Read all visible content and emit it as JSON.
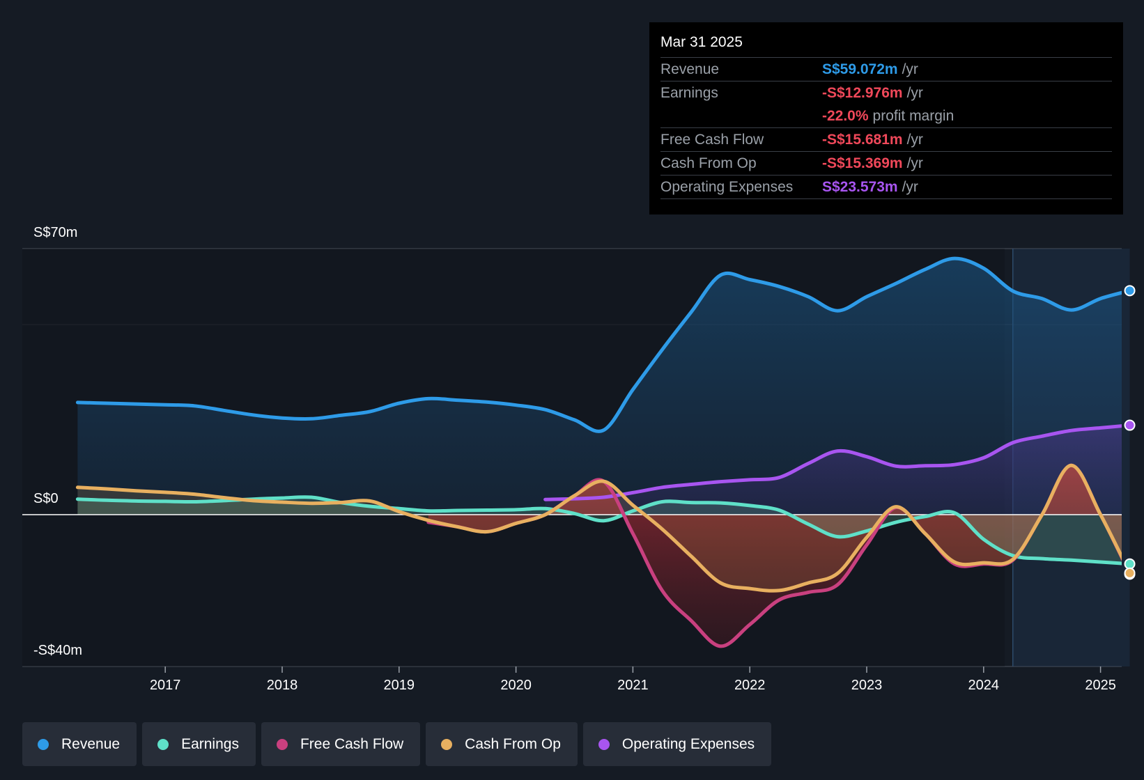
{
  "tooltip": {
    "date": "Mar 31 2025",
    "rows": [
      {
        "label": "Revenue",
        "value": "S$59.072m",
        "unit": "/yr",
        "color": "#2e9be8"
      },
      {
        "label": "Earnings",
        "value": "-S$12.976m",
        "unit": "/yr",
        "color": "#f0485a"
      },
      {
        "label": "",
        "value": "-22.0%",
        "unit": "profit margin",
        "color": "#f0485a"
      },
      {
        "label": "Free Cash Flow",
        "value": "-S$15.681m",
        "unit": "/yr",
        "color": "#f0485a"
      },
      {
        "label": "Cash From Op",
        "value": "-S$15.369m",
        "unit": "/yr",
        "color": "#f0485a"
      },
      {
        "label": "Operating Expenses",
        "value": "S$23.573m",
        "unit": "/yr",
        "color": "#a855f0"
      }
    ]
  },
  "chart_data": {
    "type": "line",
    "y_labels": {
      "top": "S$70m",
      "zero": "S$0",
      "bottom": "-S$40m"
    },
    "ylim": [
      -40,
      70
    ],
    "xlim": [
      2016.0,
      2025.25
    ],
    "x_ticks": [
      "2017",
      "2018",
      "2019",
      "2020",
      "2021",
      "2022",
      "2023",
      "2024",
      "2025"
    ],
    "x_tick_values": [
      2017,
      2018,
      2019,
      2020,
      2021,
      2022,
      2023,
      2024,
      2025
    ],
    "grid": true,
    "forecast_start": 2024.25,
    "series": [
      {
        "name": "Revenue",
        "color": "#2e9be8",
        "fill": true,
        "x": [
          2016.25,
          2016.5,
          2016.75,
          2017.0,
          2017.25,
          2017.5,
          2017.75,
          2018.0,
          2018.25,
          2018.5,
          2018.75,
          2019.0,
          2019.25,
          2019.5,
          2019.75,
          2020.0,
          2020.25,
          2020.5,
          2020.75,
          2021.0,
          2021.25,
          2021.5,
          2021.75,
          2022.0,
          2022.25,
          2022.5,
          2022.75,
          2023.0,
          2023.25,
          2023.5,
          2023.75,
          2024.0,
          2024.25,
          2024.5,
          2024.75,
          2025.0,
          2025.25
        ],
        "values": [
          29.6,
          29.4,
          29.2,
          29.0,
          28.7,
          27.5,
          26.3,
          25.5,
          25.3,
          26.2,
          27.2,
          29.4,
          30.6,
          30.2,
          29.7,
          28.9,
          27.7,
          25.0,
          22.3,
          33.0,
          43.5,
          53.5,
          63.2,
          62.0,
          60.2,
          57.5,
          53.8,
          57.5,
          61.0,
          64.7,
          67.6,
          65.0,
          59.0,
          57.0,
          54.0,
          57.0,
          59.1
        ]
      },
      {
        "name": "Earnings",
        "color": "#5fe0c8",
        "fill": true,
        "x": [
          2016.25,
          2016.5,
          2016.75,
          2017.0,
          2017.25,
          2017.5,
          2017.75,
          2018.0,
          2018.25,
          2018.5,
          2018.75,
          2019.0,
          2019.25,
          2019.5,
          2019.75,
          2020.0,
          2020.25,
          2020.5,
          2020.75,
          2021.0,
          2021.25,
          2021.5,
          2021.75,
          2022.0,
          2022.25,
          2022.5,
          2022.75,
          2023.0,
          2023.25,
          2023.5,
          2023.75,
          2024.0,
          2024.25,
          2024.5,
          2024.75,
          2025.0,
          2025.25
        ],
        "values": [
          4.1,
          3.8,
          3.6,
          3.5,
          3.4,
          3.7,
          4.1,
          4.4,
          4.6,
          3.2,
          2.2,
          1.6,
          1.0,
          1.1,
          1.2,
          1.3,
          1.6,
          0.3,
          -1.6,
          1.0,
          3.4,
          3.2,
          3.1,
          2.4,
          1.2,
          -2.5,
          -5.8,
          -4.3,
          -2.0,
          -0.5,
          0.5,
          -6.5,
          -10.8,
          -11.6,
          -12.0,
          -12.5,
          -13.0
        ]
      },
      {
        "name": "Free Cash Flow",
        "color": "#c9407f",
        "fill": true,
        "x": [
          2019.25,
          2019.5,
          2019.75,
          2020.0,
          2020.25,
          2020.5,
          2020.75,
          2021.0,
          2021.25,
          2021.5,
          2021.75,
          2022.0,
          2022.25,
          2022.5,
          2022.75,
          2023.0,
          2023.25,
          2023.5,
          2023.75,
          2024.0,
          2024.25,
          2024.5,
          2024.75,
          2025.0,
          2025.25
        ],
        "values": [
          -2.0,
          -3.2,
          -4.5,
          -2.3,
          0.0,
          5.0,
          8.8,
          -5.0,
          -20.0,
          -28.0,
          -34.7,
          -29.0,
          -22.5,
          -20.5,
          -18.5,
          -8.0,
          1.9,
          -5.0,
          -13.0,
          -13.0,
          -12.0,
          0.0,
          13.0,
          0.0,
          -15.7
        ]
      },
      {
        "name": "Cash From Op",
        "color": "#e8b060",
        "fill": true,
        "x": [
          2016.25,
          2016.5,
          2016.75,
          2017.0,
          2017.25,
          2017.5,
          2017.75,
          2018.0,
          2018.25,
          2018.5,
          2018.75,
          2019.0,
          2019.25,
          2019.5,
          2019.75,
          2020.0,
          2020.25,
          2020.5,
          2020.75,
          2021.0,
          2021.25,
          2021.5,
          2021.75,
          2022.0,
          2022.25,
          2022.5,
          2022.75,
          2023.0,
          2023.25,
          2023.5,
          2023.75,
          2024.0,
          2024.25,
          2024.5,
          2024.75,
          2025.0,
          2025.25
        ],
        "values": [
          7.2,
          6.8,
          6.3,
          5.9,
          5.4,
          4.5,
          3.7,
          3.3,
          3.0,
          3.2,
          3.6,
          0.8,
          -1.5,
          -3.2,
          -4.5,
          -2.3,
          0.0,
          5.0,
          8.8,
          2.5,
          -3.8,
          -11.0,
          -18.0,
          -19.5,
          -20.0,
          -18.0,
          -15.5,
          -6.0,
          2.1,
          -5.0,
          -12.5,
          -12.7,
          -11.8,
          0.0,
          13.0,
          0.0,
          -15.4
        ]
      },
      {
        "name": "Operating Expenses",
        "color": "#a855f0",
        "fill": true,
        "x": [
          2020.25,
          2020.5,
          2020.75,
          2021.0,
          2021.25,
          2021.5,
          2021.75,
          2022.0,
          2022.25,
          2022.5,
          2022.75,
          2023.0,
          2023.25,
          2023.5,
          2023.75,
          2024.0,
          2024.25,
          2024.5,
          2024.75,
          2025.0,
          2025.25
        ],
        "values": [
          4.0,
          4.2,
          4.6,
          5.8,
          7.2,
          8.0,
          8.7,
          9.2,
          9.8,
          13.5,
          16.8,
          15.3,
          12.8,
          12.9,
          13.2,
          15.0,
          19.0,
          20.7,
          22.2,
          22.9,
          23.6
        ]
      }
    ]
  },
  "legend": [
    {
      "label": "Revenue",
      "color": "#2e9be8"
    },
    {
      "label": "Earnings",
      "color": "#5fe0c8"
    },
    {
      "label": "Free Cash Flow",
      "color": "#c9407f"
    },
    {
      "label": "Cash From Op",
      "color": "#e8b060"
    },
    {
      "label": "Operating Expenses",
      "color": "#a855f0"
    }
  ]
}
